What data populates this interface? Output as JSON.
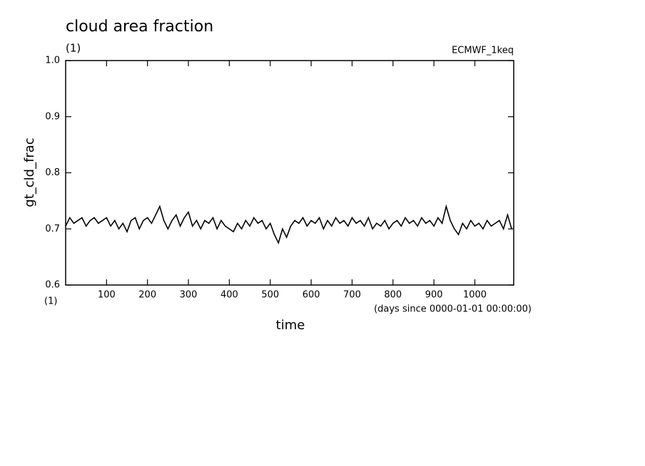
{
  "chart_data": {
    "type": "line",
    "title": "cloud area fraction",
    "subtitle": "(1)",
    "annotation": "ECMWF_1keq",
    "ylabel": "gt_cld_frac",
    "yunit": "(1)",
    "xlabel": "time",
    "xunit": "(days since 0000-01-01 00:00:00)",
    "xlim": [
      0,
      1095
    ],
    "ylim": [
      0.6,
      1
    ],
    "xticks": [
      100,
      200,
      300,
      400,
      500,
      600,
      700,
      800,
      900,
      1000
    ],
    "yticks": [
      0.6,
      0.7,
      0.8,
      0.9,
      {
        "value": 1,
        "label": "1.0"
      }
    ],
    "x": [
      0,
      10,
      20,
      30,
      40,
      50,
      60,
      70,
      80,
      90,
      100,
      110,
      120,
      130,
      140,
      150,
      160,
      170,
      180,
      190,
      200,
      210,
      220,
      230,
      240,
      250,
      260,
      270,
      280,
      290,
      300,
      310,
      320,
      330,
      340,
      350,
      360,
      370,
      380,
      390,
      400,
      410,
      420,
      430,
      440,
      450,
      460,
      470,
      480,
      490,
      500,
      510,
      520,
      530,
      540,
      550,
      560,
      570,
      580,
      590,
      600,
      610,
      620,
      630,
      640,
      650,
      660,
      670,
      680,
      690,
      700,
      710,
      720,
      730,
      740,
      750,
      760,
      770,
      780,
      790,
      800,
      810,
      820,
      830,
      840,
      850,
      860,
      870,
      880,
      890,
      900,
      910,
      920,
      930,
      940,
      950,
      960,
      970,
      980,
      990,
      1000,
      1010,
      1020,
      1030,
      1040,
      1050,
      1060,
      1070,
      1080,
      1090
    ],
    "series": [
      {
        "color": "#000000",
        "values": [
          0.705,
          0.72,
          0.71,
          0.715,
          0.72,
          0.705,
          0.715,
          0.72,
          0.71,
          0.715,
          0.72,
          0.705,
          0.715,
          0.7,
          0.71,
          0.695,
          0.715,
          0.72,
          0.7,
          0.715,
          0.72,
          0.71,
          0.725,
          0.74,
          0.715,
          0.7,
          0.715,
          0.725,
          0.705,
          0.72,
          0.73,
          0.705,
          0.715,
          0.7,
          0.715,
          0.71,
          0.72,
          0.7,
          0.715,
          0.705,
          0.7,
          0.695,
          0.71,
          0.7,
          0.715,
          0.705,
          0.72,
          0.71,
          0.715,
          0.7,
          0.71,
          0.69,
          0.675,
          0.7,
          0.685,
          0.705,
          0.715,
          0.71,
          0.72,
          0.705,
          0.715,
          0.71,
          0.72,
          0.7,
          0.715,
          0.705,
          0.72,
          0.71,
          0.715,
          0.705,
          0.72,
          0.71,
          0.715,
          0.705,
          0.72,
          0.7,
          0.71,
          0.705,
          0.715,
          0.7,
          0.71,
          0.715,
          0.705,
          0.72,
          0.71,
          0.715,
          0.705,
          0.72,
          0.71,
          0.715,
          0.705,
          0.72,
          0.71,
          0.74,
          0.715,
          0.7,
          0.69,
          0.71,
          0.7,
          0.715,
          0.705,
          0.71,
          0.7,
          0.715,
          0.705,
          0.71,
          0.715,
          0.7,
          0.725,
          0.7
        ]
      }
    ]
  }
}
